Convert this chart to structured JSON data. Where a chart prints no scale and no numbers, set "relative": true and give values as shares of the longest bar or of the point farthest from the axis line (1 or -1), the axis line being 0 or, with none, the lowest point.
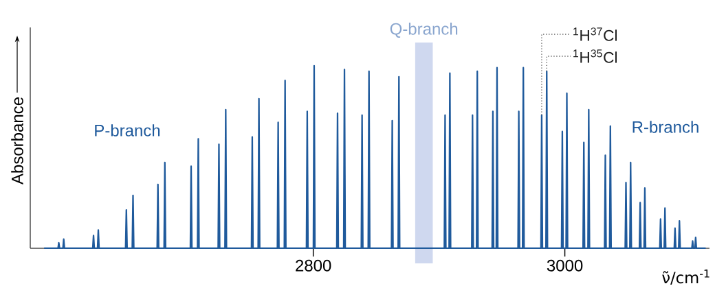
{
  "chart_data": {
    "type": "line",
    "relative": true,
    "xlabel": "ν̃/cm$^{-1}$",
    "ylabel": "Absorbance",
    "xlim": [
      2575,
      3115
    ],
    "xticks": [
      2800,
      3000
    ],
    "series": [
      {
        "color": "#1f5a9c",
        "x": [
          2586,
          2597.1,
          2597.7,
          2598.3,
          2601.0,
          2601.6,
          2602.2,
          2624.7,
          2625.3,
          2625.9,
          2628.5,
          2629.1,
          2629.7,
          2650.8,
          2651.4,
          2652.0,
          2656.1,
          2656.7,
          2657.3,
          2675.9,
          2676.5,
          2677.1,
          2681.4,
          2682.0,
          2682.6,
          2702.3,
          2702.9,
          2703.5,
          2708.0,
          2708.6,
          2709.2,
          2724.4,
          2725.0,
          2725.6,
          2729.8,
          2730.4,
          2731.0,
          2750.9,
          2751.5,
          2752.1,
          2756.2,
          2756.8,
          2757.4,
          2771.5,
          2772.1,
          2772.7,
          2777.0,
          2777.6,
          2778.2,
          2794.6,
          2795.2,
          2795.8,
          2800.1,
          2800.7,
          2801.3,
          2818.7,
          2819.3,
          2819.9,
          2824.2,
          2824.8,
          2825.4,
          2838.2,
          2838.8,
          2839.4,
          2843.7,
          2844.3,
          2844.9,
          2862.2,
          2862.8,
          2863.4,
          2867.5,
          2868.1,
          2868.7,
          2904.2,
          2904.8,
          2905.4,
          2908.0,
          2908.6,
          2909.2,
          2926.0,
          2926.6,
          2927.2,
          2929.8,
          2930.4,
          2931.0,
          2942.2,
          2942.8,
          2943.4,
          2945.5,
          2946.1,
          2946.7,
          2962.8,
          2963.4,
          2964.0,
          2966.4,
          2967.0,
          2967.6,
          2981.0,
          2981.6,
          2982.2,
          2985.0,
          2985.6,
          2986.2,
          2997.4,
          2998.0,
          2998.6,
          3001.0,
          3001.6,
          3002.2,
          3014.5,
          3015.1,
          3015.7,
          3018.4,
          3019.0,
          3019.6,
          3031.6,
          3032.2,
          3032.8,
          3035.6,
          3036.2,
          3036.8,
          3048.0,
          3048.6,
          3049.2,
          3051.7,
          3052.3,
          3052.9,
          3059.3,
          3059.9,
          3060.5,
          3063.0,
          3063.6,
          3064.2,
          3075.5,
          3076.1,
          3076.7,
          3079.0,
          3079.6,
          3080.2,
          3087.0,
          3087.6,
          3088.2,
          3090.5,
          3091.1,
          3091.7,
          3101.0,
          3101.6,
          3102.2,
          3103.4,
          3104.0,
          3104.6,
          3112
        ],
        "values": [
          0,
          0,
          0.03,
          0,
          0,
          0.05,
          0,
          0,
          0.07,
          0,
          0,
          0.1,
          0,
          0,
          0.21,
          0,
          0,
          0.29,
          0,
          0,
          0.35,
          0,
          0,
          0.47,
          0,
          0,
          0.45,
          0,
          0,
          0.6,
          0,
          0,
          0.57,
          0,
          0,
          0.76,
          0,
          0,
          0.61,
          0,
          0,
          0.82,
          0,
          0,
          0.69,
          0,
          0,
          0.92,
          0,
          0,
          0.75,
          0,
          0,
          1,
          0,
          0,
          0.74,
          0,
          0,
          0.98,
          0,
          0,
          0.73,
          0,
          0,
          0.97,
          0,
          0,
          0.7,
          0,
          0,
          0.94,
          0,
          0,
          0.73,
          0,
          0,
          0.96,
          0,
          0,
          0.73,
          0,
          0,
          0.97,
          0,
          0,
          0.75,
          0,
          0,
          0.99,
          0,
          0,
          0.75,
          0,
          0,
          0.99,
          0,
          0,
          0.73,
          0,
          0,
          0.97,
          0,
          0,
          0.64,
          0,
          0,
          0.85,
          0,
          0,
          0.58,
          0,
          0,
          0.76,
          0,
          0,
          0.51,
          0,
          0,
          0.67,
          0,
          0,
          0.36,
          0,
          0,
          0.47,
          0,
          0,
          0.25,
          0,
          0,
          0.33,
          0,
          0,
          0.16,
          0,
          0,
          0.22,
          0,
          0,
          0.11,
          0,
          0,
          0.15,
          0,
          0,
          0.04,
          0,
          0,
          0.06,
          0,
          0
        ]
      }
    ],
    "bands": [
      {
        "axis": "x",
        "from": 2881,
        "to": 2895,
        "label": "Q-branch",
        "color": "#cfd8ef"
      }
    ],
    "annotations": [
      "P-branch",
      "R-branch",
      {
        "text": "$^{1}$H$^{37}$Cl",
        "x": 2981.6,
        "y": 0.73
      },
      {
        "text": "$^{1}$H$^{35}$Cl",
        "x": 2985.6,
        "y": 0.97
      }
    ]
  }
}
